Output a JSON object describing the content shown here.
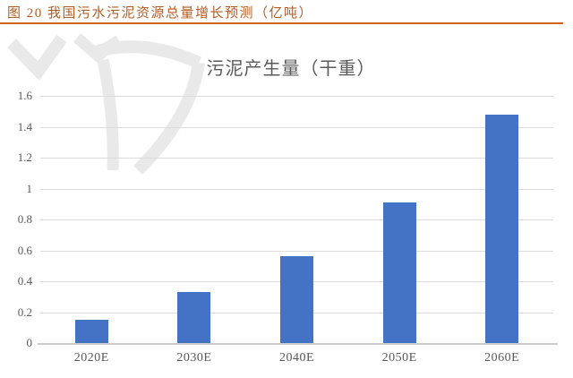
{
  "figure_caption": {
    "text": "图 20 我国污水污泥资源总量增长预测（亿吨）",
    "color": "#B25C24",
    "rule_color": "#CE6319"
  },
  "chart_data": {
    "type": "bar",
    "title": "污泥产生量（干重）",
    "categories": [
      "2020E",
      "2030E",
      "2040E",
      "2050E",
      "2060E"
    ],
    "values": [
      0.15,
      0.33,
      0.56,
      0.91,
      1.48
    ],
    "ylim": [
      0,
      1.6
    ],
    "yticks": [
      0,
      0.2,
      0.4,
      0.6,
      0.8,
      1,
      1.2,
      1.4,
      1.6
    ],
    "ytick_labels": [
      "0",
      "0.2",
      "0.4",
      "0.6",
      "0.8",
      "1",
      "1.2",
      "1.4",
      "1.6"
    ],
    "xlabel": "",
    "ylabel": "",
    "grid": true,
    "legend": "none",
    "bar_color": "#4472C4",
    "gridline_color": "#DBDBDB",
    "axis_color": "#CCCCCC",
    "tick_label_color": "#595959",
    "title_color": "#5A5A5A"
  },
  "watermark": {
    "name": "publisher-logo-watermark",
    "color": "#E9E9E9"
  }
}
